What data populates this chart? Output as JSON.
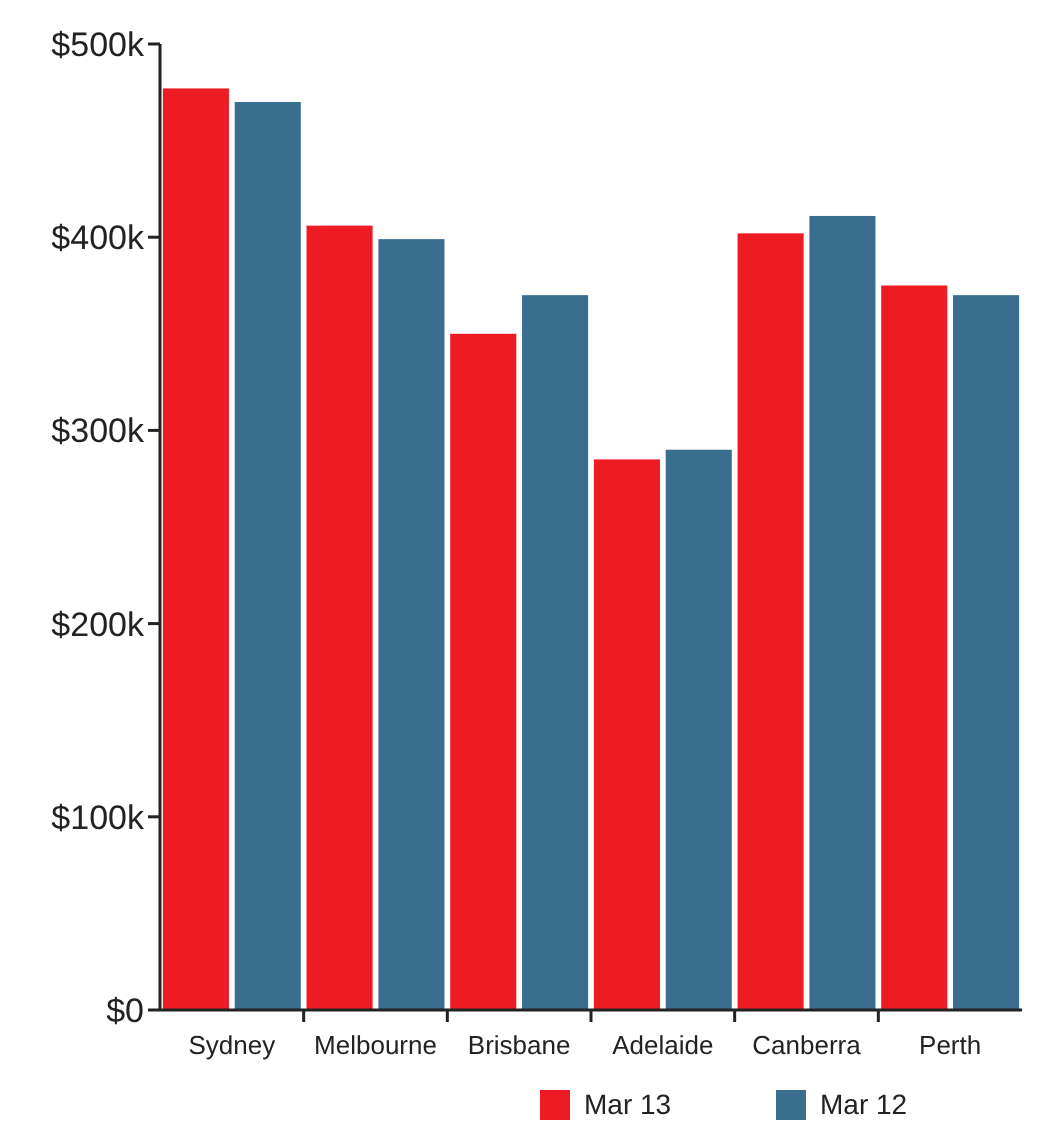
{
  "chart_data": {
    "type": "bar",
    "categories": [
      "Sydney",
      "Melbourne",
      "Brisbane",
      "Adelaide",
      "Canberra",
      "Perth"
    ],
    "series": [
      {
        "name": "Mar 13",
        "color": "#ed1c24",
        "values": [
          477,
          406,
          350,
          285,
          402,
          375
        ]
      },
      {
        "name": "Mar 12",
        "color": "#3a6e8f",
        "values": [
          470,
          399,
          370,
          290,
          411,
          370
        ]
      }
    ],
    "ylim": [
      0,
      500
    ],
    "yticks": [
      {
        "value": 0,
        "label": "$0"
      },
      {
        "value": 100,
        "label": "$100k"
      },
      {
        "value": 200,
        "label": "$200k"
      },
      {
        "value": 300,
        "label": "$300k"
      },
      {
        "value": 400,
        "label": "$400k"
      },
      {
        "value": 500,
        "label": "$500k"
      }
    ],
    "grid": false,
    "legend": "bottom"
  }
}
